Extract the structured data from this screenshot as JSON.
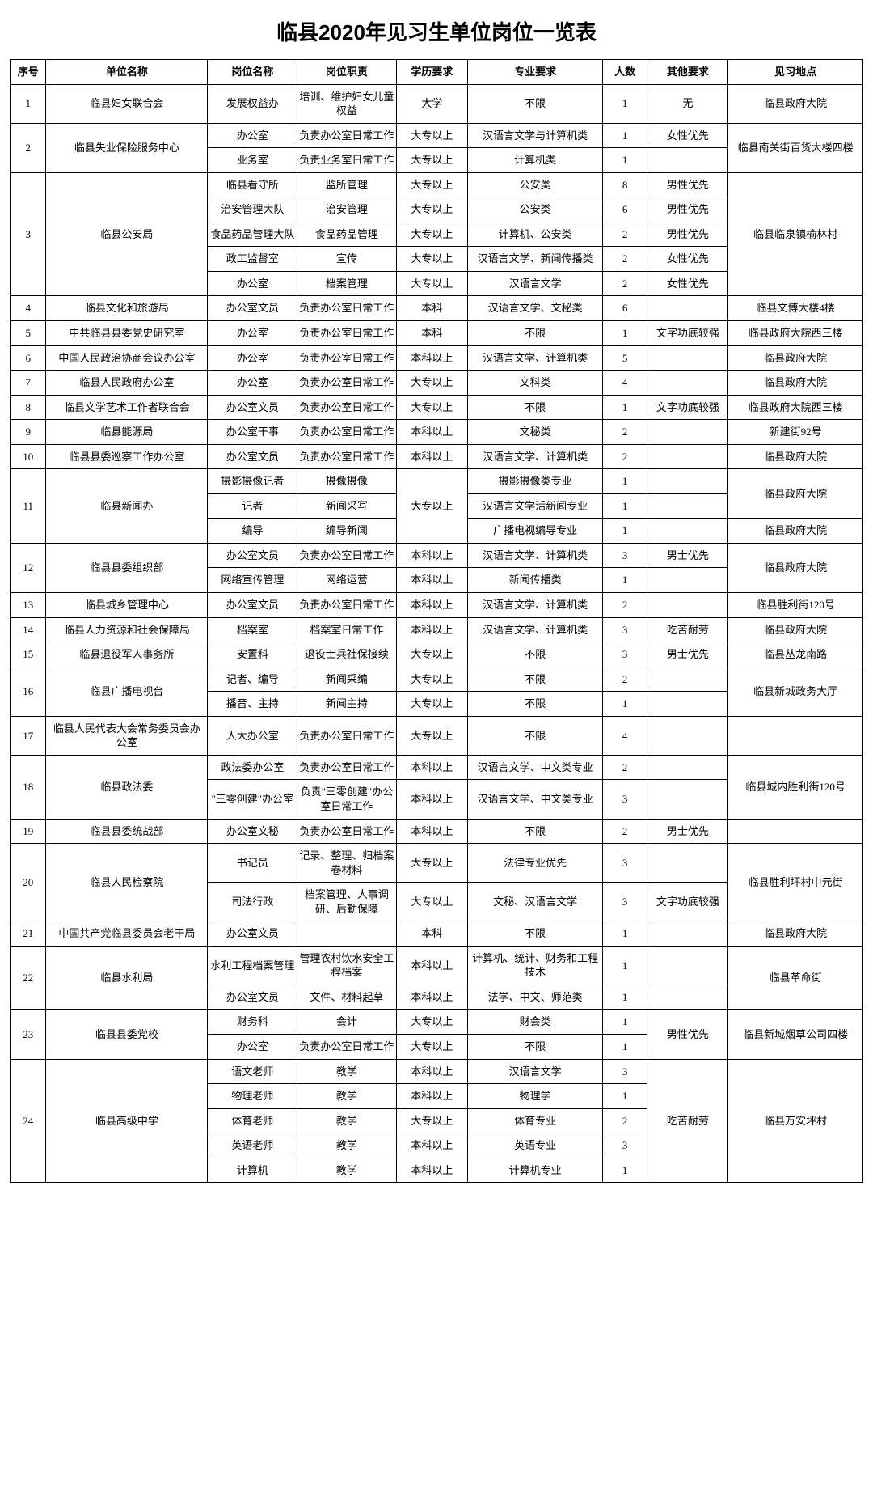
{
  "title": "临县2020年见习生单位岗位一览表",
  "columns": [
    "序号",
    "单位名称",
    "岗位名称",
    "岗位职责",
    "学历要求",
    "专业要求",
    "人数",
    "其他要求",
    "见习地点"
  ],
  "groups": [
    {
      "seq": "1",
      "org": "临县妇女联合会",
      "loc": "临县政府大院",
      "rows": [
        {
          "pos": "发展权益办",
          "duty": "培训、维护妇女儿童权益",
          "edu": "大学",
          "major": "不限",
          "num": "1",
          "other": "无"
        }
      ]
    },
    {
      "seq": "2",
      "org": "临县失业保险服务中心",
      "loc": "临县南关街百货大楼四楼",
      "rows": [
        {
          "pos": "办公室",
          "duty": "负责办公室日常工作",
          "edu": "大专以上",
          "major": "汉语言文学与计算机类",
          "num": "1",
          "other": "女性优先"
        },
        {
          "pos": "业务室",
          "duty": "负责业务室日常工作",
          "edu": "大专以上",
          "major": "计算机类",
          "num": "1",
          "other": ""
        }
      ]
    },
    {
      "seq": "3",
      "org": "临县公安局",
      "loc": "临县临泉镇榆林村",
      "rows": [
        {
          "pos": "临县看守所",
          "duty": "监所管理",
          "edu": "大专以上",
          "major": "公安类",
          "num": "8",
          "other": "男性优先"
        },
        {
          "pos": "治安管理大队",
          "duty": "治安管理",
          "edu": "大专以上",
          "major": "公安类",
          "num": "6",
          "other": "男性优先"
        },
        {
          "pos": "食品药品管理大队",
          "duty": "食品药品管理",
          "edu": "大专以上",
          "major": "计算机、公安类",
          "num": "2",
          "other": "男性优先"
        },
        {
          "pos": "政工监督室",
          "duty": "宣传",
          "edu": "大专以上",
          "major": "汉语言文学、新闻传播类",
          "num": "2",
          "other": "女性优先"
        },
        {
          "pos": "办公室",
          "duty": "档案管理",
          "edu": "大专以上",
          "major": "汉语言文学",
          "num": "2",
          "other": "女性优先"
        }
      ]
    },
    {
      "seq": "4",
      "org": "临县文化和旅游局",
      "loc": "临县文博大楼4楼",
      "rows": [
        {
          "pos": "办公室文员",
          "duty": "负责办公室日常工作",
          "edu": "本科",
          "major": "汉语言文学、文秘类",
          "num": "6",
          "other": ""
        }
      ]
    },
    {
      "seq": "5",
      "org": "中共临县县委党史研究室",
      "loc": "临县政府大院西三楼",
      "rows": [
        {
          "pos": "办公室",
          "duty": "负责办公室日常工作",
          "edu": "本科",
          "major": "不限",
          "num": "1",
          "other": "文字功底较强"
        }
      ]
    },
    {
      "seq": "6",
      "org": "中国人民政治协商会议办公室",
      "loc": "临县政府大院",
      "rows": [
        {
          "pos": "办公室",
          "duty": "负责办公室日常工作",
          "edu": "本科以上",
          "major": "汉语言文学、计算机类",
          "num": "5",
          "other": ""
        }
      ]
    },
    {
      "seq": "7",
      "org": "临县人民政府办公室",
      "loc": "临县政府大院",
      "rows": [
        {
          "pos": "办公室",
          "duty": "负责办公室日常工作",
          "edu": "大专以上",
          "major": "文科类",
          "num": "4",
          "other": ""
        }
      ]
    },
    {
      "seq": "8",
      "org": "临县文学艺术工作者联合会",
      "loc": "临县政府大院西三楼",
      "rows": [
        {
          "pos": "办公室文员",
          "duty": "负责办公室日常工作",
          "edu": "大专以上",
          "major": "不限",
          "num": "1",
          "other": "文字功底较强"
        }
      ]
    },
    {
      "seq": "9",
      "org": "临县能源局",
      "loc": "新建街92号",
      "rows": [
        {
          "pos": "办公室干事",
          "duty": "负责办公室日常工作",
          "edu": "本科以上",
          "major": "文秘类",
          "num": "2",
          "other": ""
        }
      ]
    },
    {
      "seq": "10",
      "org": "临县县委巡察工作办公室",
      "loc": "临县政府大院",
      "rows": [
        {
          "pos": "办公室文员",
          "duty": "负责办公室日常工作",
          "edu": "本科以上",
          "major": "汉语言文学、计算机类",
          "num": "2",
          "other": ""
        }
      ]
    },
    {
      "seq": "11",
      "org": "临县新闻办",
      "eduSpan": true,
      "edu": "大专以上",
      "rows": [
        {
          "pos": "摄影摄像记者",
          "duty": "摄像摄像",
          "major": "摄影摄像类专业",
          "num": "1",
          "other": "",
          "loc": "临县政府大院",
          "locSpan": 2
        },
        {
          "pos": "记者",
          "duty": "新闻采写",
          "major": "汉语言文学活新闻专业",
          "num": "1",
          "other": ""
        },
        {
          "pos": "编导",
          "duty": "编导新闻",
          "major": "广播电视编导专业",
          "num": "1",
          "other": "",
          "loc": "临县政府大院",
          "locSpan": 1
        }
      ]
    },
    {
      "seq": "12",
      "org": "临县县委组织部",
      "loc": "临县政府大院",
      "rows": [
        {
          "pos": "办公室文员",
          "duty": "负责办公室日常工作",
          "edu": "本科以上",
          "major": "汉语言文学、计算机类",
          "num": "3",
          "other": "男士优先"
        },
        {
          "pos": "网络宣传管理",
          "duty": "网络运营",
          "edu": "本科以上",
          "major": "新闻传播类",
          "num": "1",
          "other": ""
        }
      ]
    },
    {
      "seq": "13",
      "org": "临县城乡管理中心",
      "loc": "临县胜利街120号",
      "rows": [
        {
          "pos": "办公室文员",
          "duty": "负责办公室日常工作",
          "edu": "本科以上",
          "major": "汉语言文学、计算机类",
          "num": "2",
          "other": ""
        }
      ]
    },
    {
      "seq": "14",
      "org": "临县人力资源和社会保障局",
      "loc": "临县政府大院",
      "rows": [
        {
          "pos": "档案室",
          "duty": "档案室日常工作",
          "edu": "本科以上",
          "major": "汉语言文学、计算机类",
          "num": "3",
          "other": "吃苦耐劳"
        }
      ]
    },
    {
      "seq": "15",
      "org": "临县退役军人事务所",
      "loc": "临县丛龙南路",
      "rows": [
        {
          "pos": "安置科",
          "duty": "退役士兵社保接续",
          "edu": "大专以上",
          "major": "不限",
          "num": "3",
          "other": "男士优先"
        }
      ]
    },
    {
      "seq": "16",
      "org": "临县广播电视台",
      "loc": "临县新城政务大厅",
      "rows": [
        {
          "pos": "记者、编导",
          "duty": "新闻采编",
          "edu": "大专以上",
          "major": "不限",
          "num": "2",
          "other": ""
        },
        {
          "pos": "播音、主持",
          "duty": "新闻主持",
          "edu": "大专以上",
          "major": "不限",
          "num": "1",
          "other": ""
        }
      ]
    },
    {
      "seq": "17",
      "org": "临县人民代表大会常务委员会办公室",
      "loc": "",
      "rows": [
        {
          "pos": "人大办公室",
          "duty": "负责办公室日常工作",
          "edu": "大专以上",
          "major": "不限",
          "num": "4",
          "other": ""
        }
      ]
    },
    {
      "seq": "18",
      "org": "临县政法委",
      "loc": "临县城内胜利街120号",
      "rows": [
        {
          "pos": "政法委办公室",
          "duty": "负责办公室日常工作",
          "edu": "本科以上",
          "major": "汉语言文学、中文类专业",
          "num": "2",
          "other": ""
        },
        {
          "pos": "\"三零创建\"办公室",
          "duty": "负责\"三零创建\"办公室日常工作",
          "edu": "本科以上",
          "major": "汉语言文学、中文类专业",
          "num": "3",
          "other": ""
        }
      ]
    },
    {
      "seq": "19",
      "org": "临县县委统战部",
      "loc": "",
      "rows": [
        {
          "pos": "办公室文秘",
          "duty": "负责办公室日常工作",
          "edu": "本科以上",
          "major": "不限",
          "num": "2",
          "other": "男士优先"
        }
      ]
    },
    {
      "seq": "20",
      "org": "临县人民检察院",
      "loc": "临县胜利坪村中元街",
      "rows": [
        {
          "pos": "书记员",
          "duty": "记录、整理、归档案卷材料",
          "edu": "大专以上",
          "major": "法律专业优先",
          "num": "3",
          "other": ""
        },
        {
          "pos": "司法行政",
          "duty": "档案管理、人事调研、后勤保障",
          "edu": "大专以上",
          "major": "文秘、汉语言文学",
          "num": "3",
          "other": "文字功底较强"
        }
      ]
    },
    {
      "seq": "21",
      "org": "中国共产党临县委员会老干局",
      "loc": "临县政府大院",
      "rows": [
        {
          "pos": "办公室文员",
          "duty": "",
          "edu": "本科",
          "major": "不限",
          "num": "1",
          "other": ""
        }
      ]
    },
    {
      "seq": "22",
      "org": "临县水利局",
      "loc": "临县革命街",
      "rows": [
        {
          "pos": "水利工程档案管理",
          "duty": "管理农村饮水安全工程档案",
          "edu": "本科以上",
          "major": "计算机、统计、财务和工程技术",
          "num": "1",
          "other": ""
        },
        {
          "pos": "办公室文员",
          "duty": "文件、材料起草",
          "edu": "本科以上",
          "major": "法学、中文、师范类",
          "num": "1",
          "other": ""
        }
      ]
    },
    {
      "seq": "23",
      "org": "临县县委党校",
      "loc": "临县新城烟草公司四楼",
      "otherSpan": true,
      "other": "男性优先",
      "rows": [
        {
          "pos": "财务科",
          "duty": "会计",
          "edu": "大专以上",
          "major": "财会类",
          "num": "1"
        },
        {
          "pos": "办公室",
          "duty": "负责办公室日常工作",
          "edu": "大专以上",
          "major": "不限",
          "num": "1"
        }
      ]
    },
    {
      "seq": "24",
      "org": "临县高级中学",
      "loc": "临县万安坪村",
      "otherSpan": true,
      "other": "吃苦耐劳",
      "rows": [
        {
          "pos": "语文老师",
          "duty": "教学",
          "edu": "本科以上",
          "major": "汉语言文学",
          "num": "3"
        },
        {
          "pos": "物理老师",
          "duty": "教学",
          "edu": "本科以上",
          "major": "物理学",
          "num": "1"
        },
        {
          "pos": "体育老师",
          "duty": "教学",
          "edu": "大专以上",
          "major": "体育专业",
          "num": "2"
        },
        {
          "pos": "英语老师",
          "duty": "教学",
          "edu": "本科以上",
          "major": "英语专业",
          "num": "3"
        },
        {
          "pos": "计算机",
          "duty": "教学",
          "edu": "本科以上",
          "major": "计算机专业",
          "num": "1"
        }
      ]
    }
  ]
}
